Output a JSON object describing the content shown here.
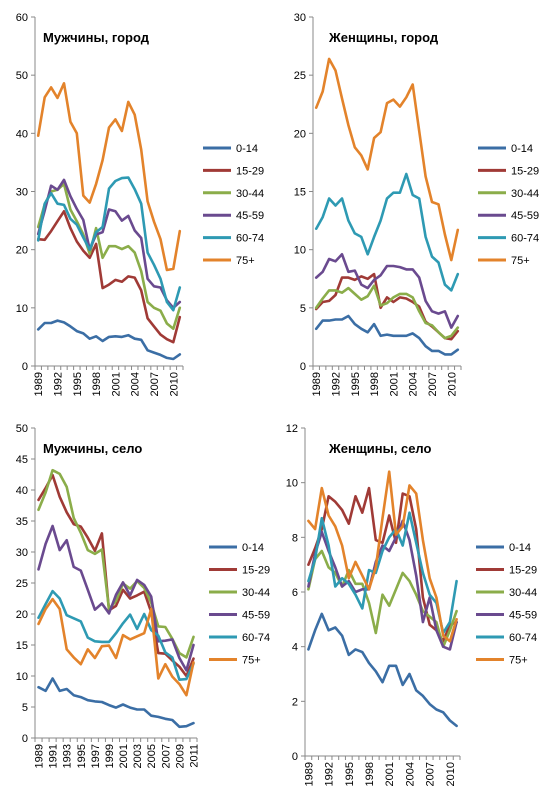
{
  "chart_data": [
    {
      "type": "line",
      "title": "Мужчины, город",
      "x": [
        1989,
        1990,
        1991,
        1992,
        1993,
        1994,
        1995,
        1996,
        1997,
        1998,
        1999,
        2000,
        2001,
        2002,
        2003,
        2004,
        2005,
        2006,
        2007,
        2008,
        2009,
        2010,
        2011
      ],
      "x_tick_labels": [
        "1989",
        "1992",
        "1995",
        "1998",
        "2001",
        "2004",
        "2007",
        "2010"
      ],
      "ylim": [
        0,
        60
      ],
      "y_ticks": [
        0,
        10,
        20,
        30,
        40,
        50,
        60
      ],
      "legend_position": "right",
      "series": [
        {
          "name": "0-14",
          "color": "#3b6ea5",
          "values": [
            6.3,
            7.4,
            7.4,
            7.8,
            7.5,
            6.8,
            6.0,
            5.6,
            4.7,
            5.1,
            4.3,
            5.0,
            5.1,
            5.0,
            5.3,
            4.7,
            4.5,
            2.7,
            2.3,
            1.9,
            1.4,
            1.2,
            2.0
          ]
        },
        {
          "name": "15-29",
          "color": "#a03a36",
          "values": [
            21.8,
            21.7,
            23.2,
            24.9,
            26.6,
            23.7,
            21.4,
            19.8,
            18.6,
            21.0,
            13.4,
            14.0,
            14.8,
            14.5,
            15.4,
            15.2,
            13.0,
            8.2,
            6.8,
            5.4,
            4.6,
            4.1,
            8.4
          ]
        },
        {
          "name": "30-44",
          "color": "#8bad4a",
          "values": [
            23.9,
            27.8,
            30.0,
            30.3,
            31.3,
            26.9,
            24.9,
            22.6,
            19.3,
            23.7,
            18.6,
            20.6,
            20.6,
            20.1,
            20.6,
            19.5,
            16.3,
            11.0,
            10.0,
            9.5,
            7.3,
            6.4,
            10.0
          ]
        },
        {
          "name": "45-59",
          "color": "#6a4a8f",
          "values": [
            22.7,
            26.7,
            31.0,
            30.3,
            32.0,
            29.2,
            27.0,
            25.1,
            20.0,
            22.6,
            23.0,
            26.9,
            26.6,
            25.0,
            25.8,
            23.3,
            22.0,
            15.0,
            13.7,
            13.5,
            11.3,
            10.0,
            11.0
          ]
        },
        {
          "name": "60-74",
          "color": "#2e9ab3",
          "values": [
            21.6,
            27.9,
            29.7,
            27.9,
            27.7,
            25.3,
            24.3,
            22.1,
            20.0,
            23.0,
            23.9,
            30.5,
            31.8,
            32.3,
            32.4,
            30.4,
            27.9,
            19.5,
            17.4,
            15.0,
            11.0,
            9.6,
            13.5
          ]
        },
        {
          "name": "75+",
          "color": "#e3832b",
          "values": [
            39.6,
            46.2,
            47.9,
            46.1,
            48.6,
            42.0,
            40.0,
            29.3,
            28.1,
            31.3,
            35.4,
            41.0,
            42.4,
            40.4,
            45.4,
            43.2,
            37.2,
            28.3,
            24.8,
            21.8,
            16.5,
            16.7,
            23.2
          ]
        }
      ]
    },
    {
      "type": "line",
      "title": "Женщины, город",
      "x": [
        1989,
        1990,
        1991,
        1992,
        1993,
        1994,
        1995,
        1996,
        1997,
        1998,
        1999,
        2000,
        2001,
        2002,
        2003,
        2004,
        2005,
        2006,
        2007,
        2008,
        2009,
        2010,
        2011
      ],
      "x_tick_labels": [
        "1989",
        "1992",
        "1995",
        "1998",
        "2001",
        "2004",
        "2007",
        "2010"
      ],
      "ylim": [
        0,
        30
      ],
      "y_ticks": [
        0,
        5,
        10,
        15,
        20,
        25,
        30
      ],
      "legend_position": "right",
      "series": [
        {
          "name": "0-14",
          "color": "#3b6ea5",
          "values": [
            3.2,
            3.9,
            3.9,
            4.0,
            4.0,
            4.3,
            3.6,
            3.2,
            2.9,
            3.6,
            2.6,
            2.7,
            2.6,
            2.6,
            2.6,
            2.8,
            2.4,
            1.7,
            1.3,
            1.3,
            1.0,
            1.0,
            1.4
          ]
        },
        {
          "name": "15-29",
          "color": "#a03a36",
          "values": [
            4.9,
            5.5,
            5.6,
            6.1,
            7.6,
            7.6,
            7.4,
            7.7,
            7.5,
            7.9,
            5.0,
            5.9,
            5.5,
            5.9,
            5.8,
            5.5,
            5.1,
            3.8,
            3.4,
            2.9,
            2.4,
            2.3,
            3.0
          ]
        },
        {
          "name": "30-44",
          "color": "#8bad4a",
          "values": [
            5.0,
            5.8,
            6.5,
            6.5,
            6.3,
            6.7,
            6.2,
            5.7,
            6.0,
            6.9,
            5.2,
            5.4,
            5.9,
            6.2,
            6.2,
            5.9,
            4.7,
            3.7,
            3.5,
            2.9,
            2.4,
            2.6,
            3.3
          ]
        },
        {
          "name": "45-59",
          "color": "#6a4a8f",
          "values": [
            7.6,
            8.1,
            9.2,
            9.0,
            9.6,
            8.1,
            8.2,
            7.0,
            6.7,
            7.4,
            7.8,
            8.6,
            8.6,
            8.5,
            8.3,
            8.3,
            7.6,
            5.6,
            4.7,
            4.5,
            4.7,
            3.3,
            4.3
          ]
        },
        {
          "name": "60-74",
          "color": "#2e9ab3",
          "values": [
            11.8,
            12.8,
            14.4,
            13.8,
            14.4,
            12.5,
            11.4,
            11.1,
            9.6,
            11.1,
            12.5,
            14.4,
            14.9,
            14.9,
            16.5,
            14.7,
            14.4,
            11.1,
            9.4,
            8.9,
            7.0,
            6.5,
            7.9
          ]
        },
        {
          "name": "75+",
          "color": "#e3832b",
          "values": [
            22.2,
            23.6,
            26.4,
            25.4,
            23.0,
            20.7,
            18.8,
            18.1,
            16.9,
            19.6,
            20.1,
            22.6,
            22.9,
            22.3,
            23.1,
            24.2,
            20.2,
            16.3,
            14.1,
            13.9,
            11.3,
            9.1,
            11.7
          ]
        }
      ]
    },
    {
      "type": "line",
      "title": "Мужчины, село",
      "x": [
        1989,
        1990,
        1991,
        1992,
        1993,
        1994,
        1995,
        1996,
        1997,
        1998,
        1999,
        2000,
        2001,
        2002,
        2003,
        2004,
        2005,
        2006,
        2007,
        2008,
        2009,
        2010,
        2011
      ],
      "x_tick_labels": [
        "1989",
        "1991",
        "1993",
        "1995",
        "1997",
        "1999",
        "2001",
        "2003",
        "2005",
        "2007",
        "2009",
        "2011"
      ],
      "ylim": [
        0,
        50
      ],
      "y_ticks": [
        0,
        5,
        10,
        15,
        20,
        25,
        30,
        35,
        40,
        45,
        50
      ],
      "legend_position": "right",
      "series": [
        {
          "name": "0-14",
          "color": "#3b6ea5",
          "values": [
            8.2,
            7.6,
            9.6,
            7.6,
            7.9,
            6.9,
            6.6,
            6.1,
            5.9,
            5.8,
            5.3,
            4.9,
            5.4,
            4.9,
            4.6,
            4.6,
            3.6,
            3.4,
            3.1,
            2.9,
            1.8,
            1.9,
            2.4
          ]
        },
        {
          "name": "15-29",
          "color": "#a03a36",
          "values": [
            38.4,
            40.3,
            42.4,
            38.9,
            36.4,
            34.5,
            34.1,
            32.3,
            30.2,
            33.0,
            20.6,
            21.3,
            23.9,
            22.5,
            23.0,
            23.6,
            20.3,
            13.7,
            13.6,
            12.5,
            11.5,
            10.0,
            12.8
          ]
        },
        {
          "name": "30-44",
          "color": "#8bad4a",
          "values": [
            36.8,
            39.6,
            43.2,
            42.6,
            40.5,
            35.5,
            33.1,
            30.3,
            29.7,
            30.4,
            20.8,
            22.1,
            24.9,
            24.1,
            25.3,
            24.2,
            21.8,
            18.0,
            17.9,
            16.0,
            13.7,
            13.0,
            16.3
          ]
        },
        {
          "name": "45-59",
          "color": "#6a4a8f",
          "values": [
            27.2,
            31.3,
            34.2,
            30.3,
            31.9,
            27.6,
            27.0,
            23.9,
            20.7,
            21.7,
            20.1,
            23.1,
            25.1,
            23.0,
            25.5,
            24.7,
            22.8,
            15.6,
            15.7,
            15.9,
            12.9,
            10.9,
            15.0
          ]
        },
        {
          "name": "60-74",
          "color": "#2e9ab3",
          "values": [
            19.4,
            21.6,
            23.7,
            22.5,
            19.8,
            19.3,
            18.8,
            16.2,
            15.6,
            15.5,
            15.5,
            16.9,
            18.5,
            19.9,
            17.6,
            20.0,
            17.4,
            16.5,
            13.8,
            13.0,
            9.4,
            9.5,
            12.0
          ]
        },
        {
          "name": "75+",
          "color": "#e3832b",
          "values": [
            18.4,
            20.8,
            22.4,
            20.8,
            14.3,
            13.0,
            11.9,
            14.3,
            12.9,
            14.8,
            14.9,
            12.9,
            16.6,
            15.9,
            16.4,
            16.9,
            20.8,
            9.6,
            11.9,
            9.9,
            8.7,
            6.9,
            12.2
          ]
        }
      ]
    },
    {
      "type": "line",
      "title": "Женщины, село",
      "x": [
        1989,
        1990,
        1991,
        1992,
        1993,
        1994,
        1995,
        1996,
        1997,
        1998,
        1999,
        2000,
        2001,
        2002,
        2003,
        2004,
        2005,
        2006,
        2007,
        2008,
        2009,
        2010,
        2011
      ],
      "x_tick_labels": [
        "1989",
        "1992",
        "1995",
        "1998",
        "2001",
        "2004",
        "2007",
        "2010"
      ],
      "ylim": [
        0,
        12
      ],
      "y_ticks": [
        0,
        2,
        4,
        6,
        8,
        10,
        12
      ],
      "legend_position": "right",
      "series": [
        {
          "name": "0-14",
          "color": "#3b6ea5",
          "values": [
            3.9,
            4.6,
            5.2,
            4.6,
            4.7,
            4.4,
            3.7,
            3.9,
            3.8,
            3.4,
            3.1,
            2.7,
            3.3,
            3.3,
            2.6,
            3.0,
            2.4,
            2.2,
            1.9,
            1.7,
            1.6,
            1.3,
            1.1
          ]
        },
        {
          "name": "15-29",
          "color": "#a03a36",
          "values": [
            7.0,
            7.6,
            8.3,
            9.5,
            9.3,
            9.0,
            8.5,
            9.5,
            8.9,
            9.8,
            7.9,
            7.8,
            8.8,
            7.8,
            9.6,
            9.5,
            8.3,
            5.8,
            4.8,
            4.6,
            4.2,
            4.8,
            4.9
          ]
        },
        {
          "name": "30-44",
          "color": "#8bad4a",
          "values": [
            6.1,
            7.2,
            7.5,
            6.9,
            6.7,
            6.2,
            6.8,
            6.3,
            6.3,
            5.6,
            4.5,
            5.9,
            5.5,
            6.1,
            6.7,
            6.4,
            5.9,
            5.3,
            5.1,
            4.9,
            4.0,
            4.6,
            5.3
          ]
        },
        {
          "name": "45-59",
          "color": "#6a4a8f",
          "values": [
            6.2,
            7.4,
            8.2,
            7.5,
            6.9,
            6.2,
            6.4,
            6.0,
            6.1,
            6.1,
            7.1,
            7.7,
            7.5,
            8.0,
            8.6,
            7.9,
            6.6,
            4.9,
            5.8,
            4.6,
            4.0,
            3.9,
            4.9
          ]
        },
        {
          "name": "60-74",
          "color": "#2e9ab3",
          "values": [
            6.4,
            7.2,
            8.7,
            7.7,
            6.2,
            6.5,
            6.3,
            5.9,
            5.4,
            6.8,
            6.7,
            7.5,
            8.0,
            8.3,
            7.7,
            8.9,
            7.8,
            6.7,
            5.9,
            5.6,
            4.5,
            4.9,
            6.4
          ]
        },
        {
          "name": "75+",
          "color": "#e3832b",
          "values": [
            8.6,
            8.3,
            9.8,
            8.8,
            8.4,
            7.7,
            6.5,
            7.1,
            6.6,
            6.1,
            6.9,
            8.7,
            10.4,
            8.1,
            8.4,
            9.9,
            9.6,
            7.9,
            6.5,
            5.8,
            4.4,
            4.2,
            5.0
          ]
        }
      ]
    }
  ]
}
